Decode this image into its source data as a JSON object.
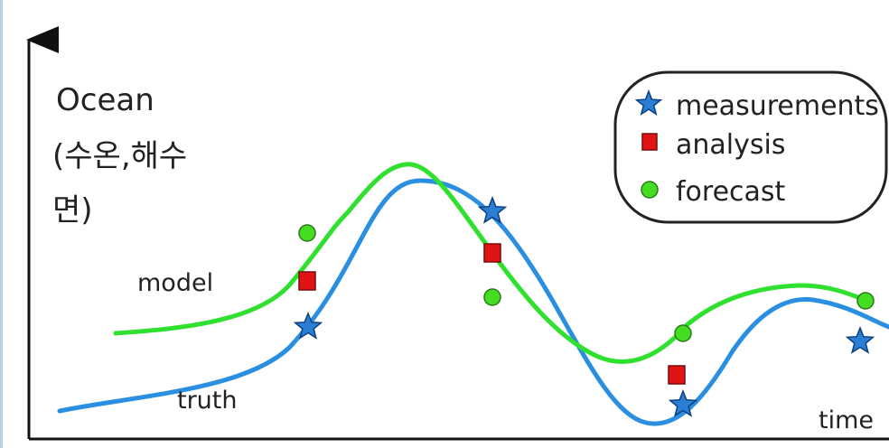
{
  "axis": {
    "y_title_line1": "Ocean",
    "y_title_line2": "(수온,해수",
    "y_title_line3": "면)",
    "x_label": "time"
  },
  "curves": {
    "model_label": "model",
    "truth_label": "truth",
    "model_color": "#2fe02f",
    "truth_color": "#2a8fe0"
  },
  "legend": {
    "measurements": "measurements",
    "analysis": "analysis",
    "forecast": "forecast"
  },
  "markers": {
    "star_color": "#2a7fd4",
    "square_color": "#e01414",
    "circle_color": "#44dd22",
    "star_icon": "star-icon",
    "square_icon": "square-icon",
    "circle_icon": "circle-icon"
  }
}
